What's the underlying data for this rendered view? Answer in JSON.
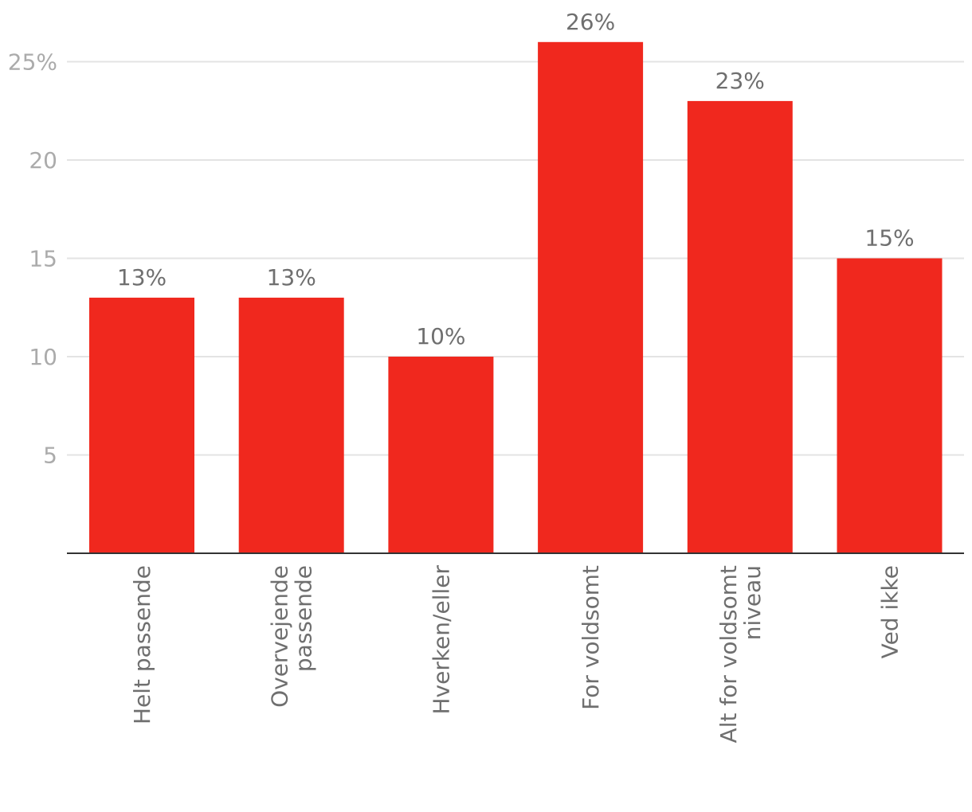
{
  "chart_data": {
    "type": "bar",
    "categories": [
      [
        "Helt passende"
      ],
      [
        "Overvejende",
        "passende"
      ],
      [
        "Hverken/eller"
      ],
      [
        "For voldsomt"
      ],
      [
        "Alt for voldsomt",
        "niveau"
      ],
      [
        "Ved ikke"
      ]
    ],
    "values": [
      13,
      13,
      10,
      26,
      23,
      15
    ],
    "value_labels": [
      "13%",
      "13%",
      "10%",
      "26%",
      "23%",
      "15%"
    ],
    "yticks": [
      {
        "value": 5,
        "label": "5"
      },
      {
        "value": 10,
        "label": "10"
      },
      {
        "value": 15,
        "label": "15"
      },
      {
        "value": 20,
        "label": "20"
      },
      {
        "value": 25,
        "label": "25%"
      }
    ],
    "ylim": [
      0,
      26
    ],
    "grid": true,
    "bar_color": "#f0281e"
  }
}
